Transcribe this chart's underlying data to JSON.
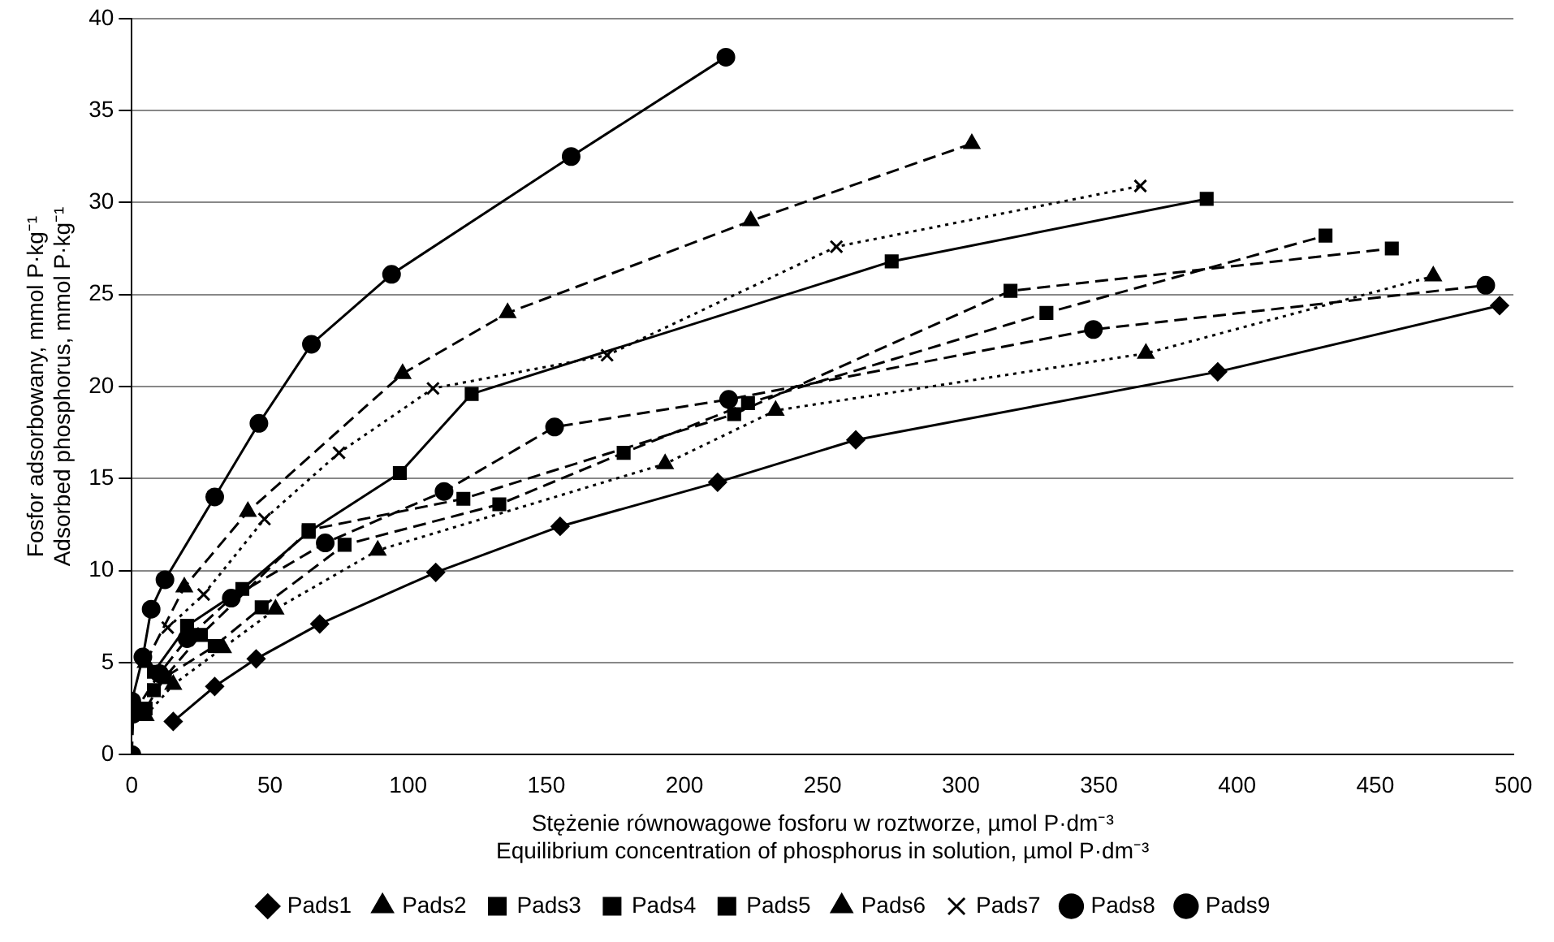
{
  "chart_data": {
    "type": "line",
    "xlabel": "Stężenie równowagowe fosforu w roztworze, µmol P·dm⁻³\nEquilibrium concentration of phosphorus in solution, µmol P·dm⁻³",
    "ylabel": "Fosfor adsorbowany, mmol P·kg⁻¹\nAdsorbed phosphorus, mmol P·kg⁻¹",
    "xlim": [
      0,
      500
    ],
    "xticks": [
      0,
      50,
      100,
      150,
      200,
      250,
      300,
      350,
      400,
      450,
      500
    ],
    "ylim": [
      0,
      40
    ],
    "yticks": [
      0,
      5,
      10,
      15,
      20,
      25,
      30,
      35,
      40
    ],
    "grid": "y",
    "legend": "bottom",
    "series": [
      {
        "name": "Pads1",
        "color": "#000000",
        "marker": "diamond",
        "line_style": "solid",
        "x": [
          15,
          30,
          45,
          68,
          110,
          155,
          212,
          262,
          393,
          495
        ],
        "values": [
          1.8,
          3.7,
          5.2,
          7.1,
          9.9,
          12.4,
          14.8,
          17.1,
          20.8,
          24.4
        ]
      },
      {
        "name": "Pads2",
        "color": "#000000",
        "marker": "triangle",
        "line_style": "dotted",
        "x": [
          5,
          15,
          33,
          52,
          89,
          193,
          233,
          367,
          471
        ],
        "values": [
          2.1,
          3.8,
          5.8,
          7.9,
          11.1,
          15.8,
          18.7,
          21.8,
          26.0
        ]
      },
      {
        "name": "Pads3",
        "color": "#000000",
        "marker": "square",
        "line_style": "dashed",
        "x": [
          5,
          12,
          30,
          47,
          77,
          133,
          178,
          223,
          331,
          432
        ],
        "values": [
          2.5,
          4.2,
          5.9,
          8.0,
          11.4,
          13.6,
          16.4,
          19.1,
          24.0,
          28.2
        ]
      },
      {
        "name": "Pads4",
        "color": "#000000",
        "marker": "square",
        "line_style": "dashed",
        "x": [
          8,
          25,
          64,
          120,
          218,
          318,
          456
        ],
        "values": [
          3.5,
          6.5,
          12.2,
          13.9,
          18.5,
          25.2,
          27.5
        ]
      },
      {
        "name": "Pads5",
        "color": "#000000",
        "marker": "square",
        "line_style": "solid",
        "x": [
          8,
          20,
          40,
          64,
          97,
          123,
          275,
          389
        ],
        "values": [
          4.5,
          7,
          9,
          12.1,
          15.3,
          19.6,
          26.8,
          30.2
        ]
      },
      {
        "name": "Pads6",
        "color": "#000000",
        "marker": "triangle",
        "line_style": "dashed",
        "x": [
          5,
          19,
          42,
          98,
          136,
          224,
          304
        ],
        "values": [
          5,
          9.1,
          13.2,
          20.7,
          24.0,
          29.0,
          33.2
        ]
      },
      {
        "name": "Pads7",
        "color": "#000000",
        "marker": "cross",
        "line_style": "dotted",
        "x": [
          13,
          26,
          48,
          75,
          109,
          172,
          255,
          365
        ],
        "values": [
          6.9,
          8.7,
          12.8,
          16.4,
          19.9,
          21.7,
          27.6,
          30.9
        ]
      },
      {
        "name": "Pads8",
        "color": "#000000",
        "marker": "circle",
        "line_style": "solid",
        "x": [
          0,
          4,
          7,
          12,
          30,
          46,
          65,
          94,
          159,
          215
        ],
        "values": [
          2.9,
          5.3,
          7.9,
          9.5,
          14.0,
          18.0,
          22.3,
          26.1,
          32.5,
          37.9
        ]
      },
      {
        "name": "Pads9",
        "color": "#000000",
        "marker": "circle",
        "line_style": "dashed",
        "x": [
          0,
          0.5,
          10,
          20,
          36,
          70,
          113,
          153,
          216,
          348,
          490
        ],
        "values": [
          0,
          2.2,
          4.4,
          6.3,
          8.5,
          11.5,
          14.3,
          17.8,
          19.3,
          23.1,
          25.5
        ]
      }
    ]
  }
}
